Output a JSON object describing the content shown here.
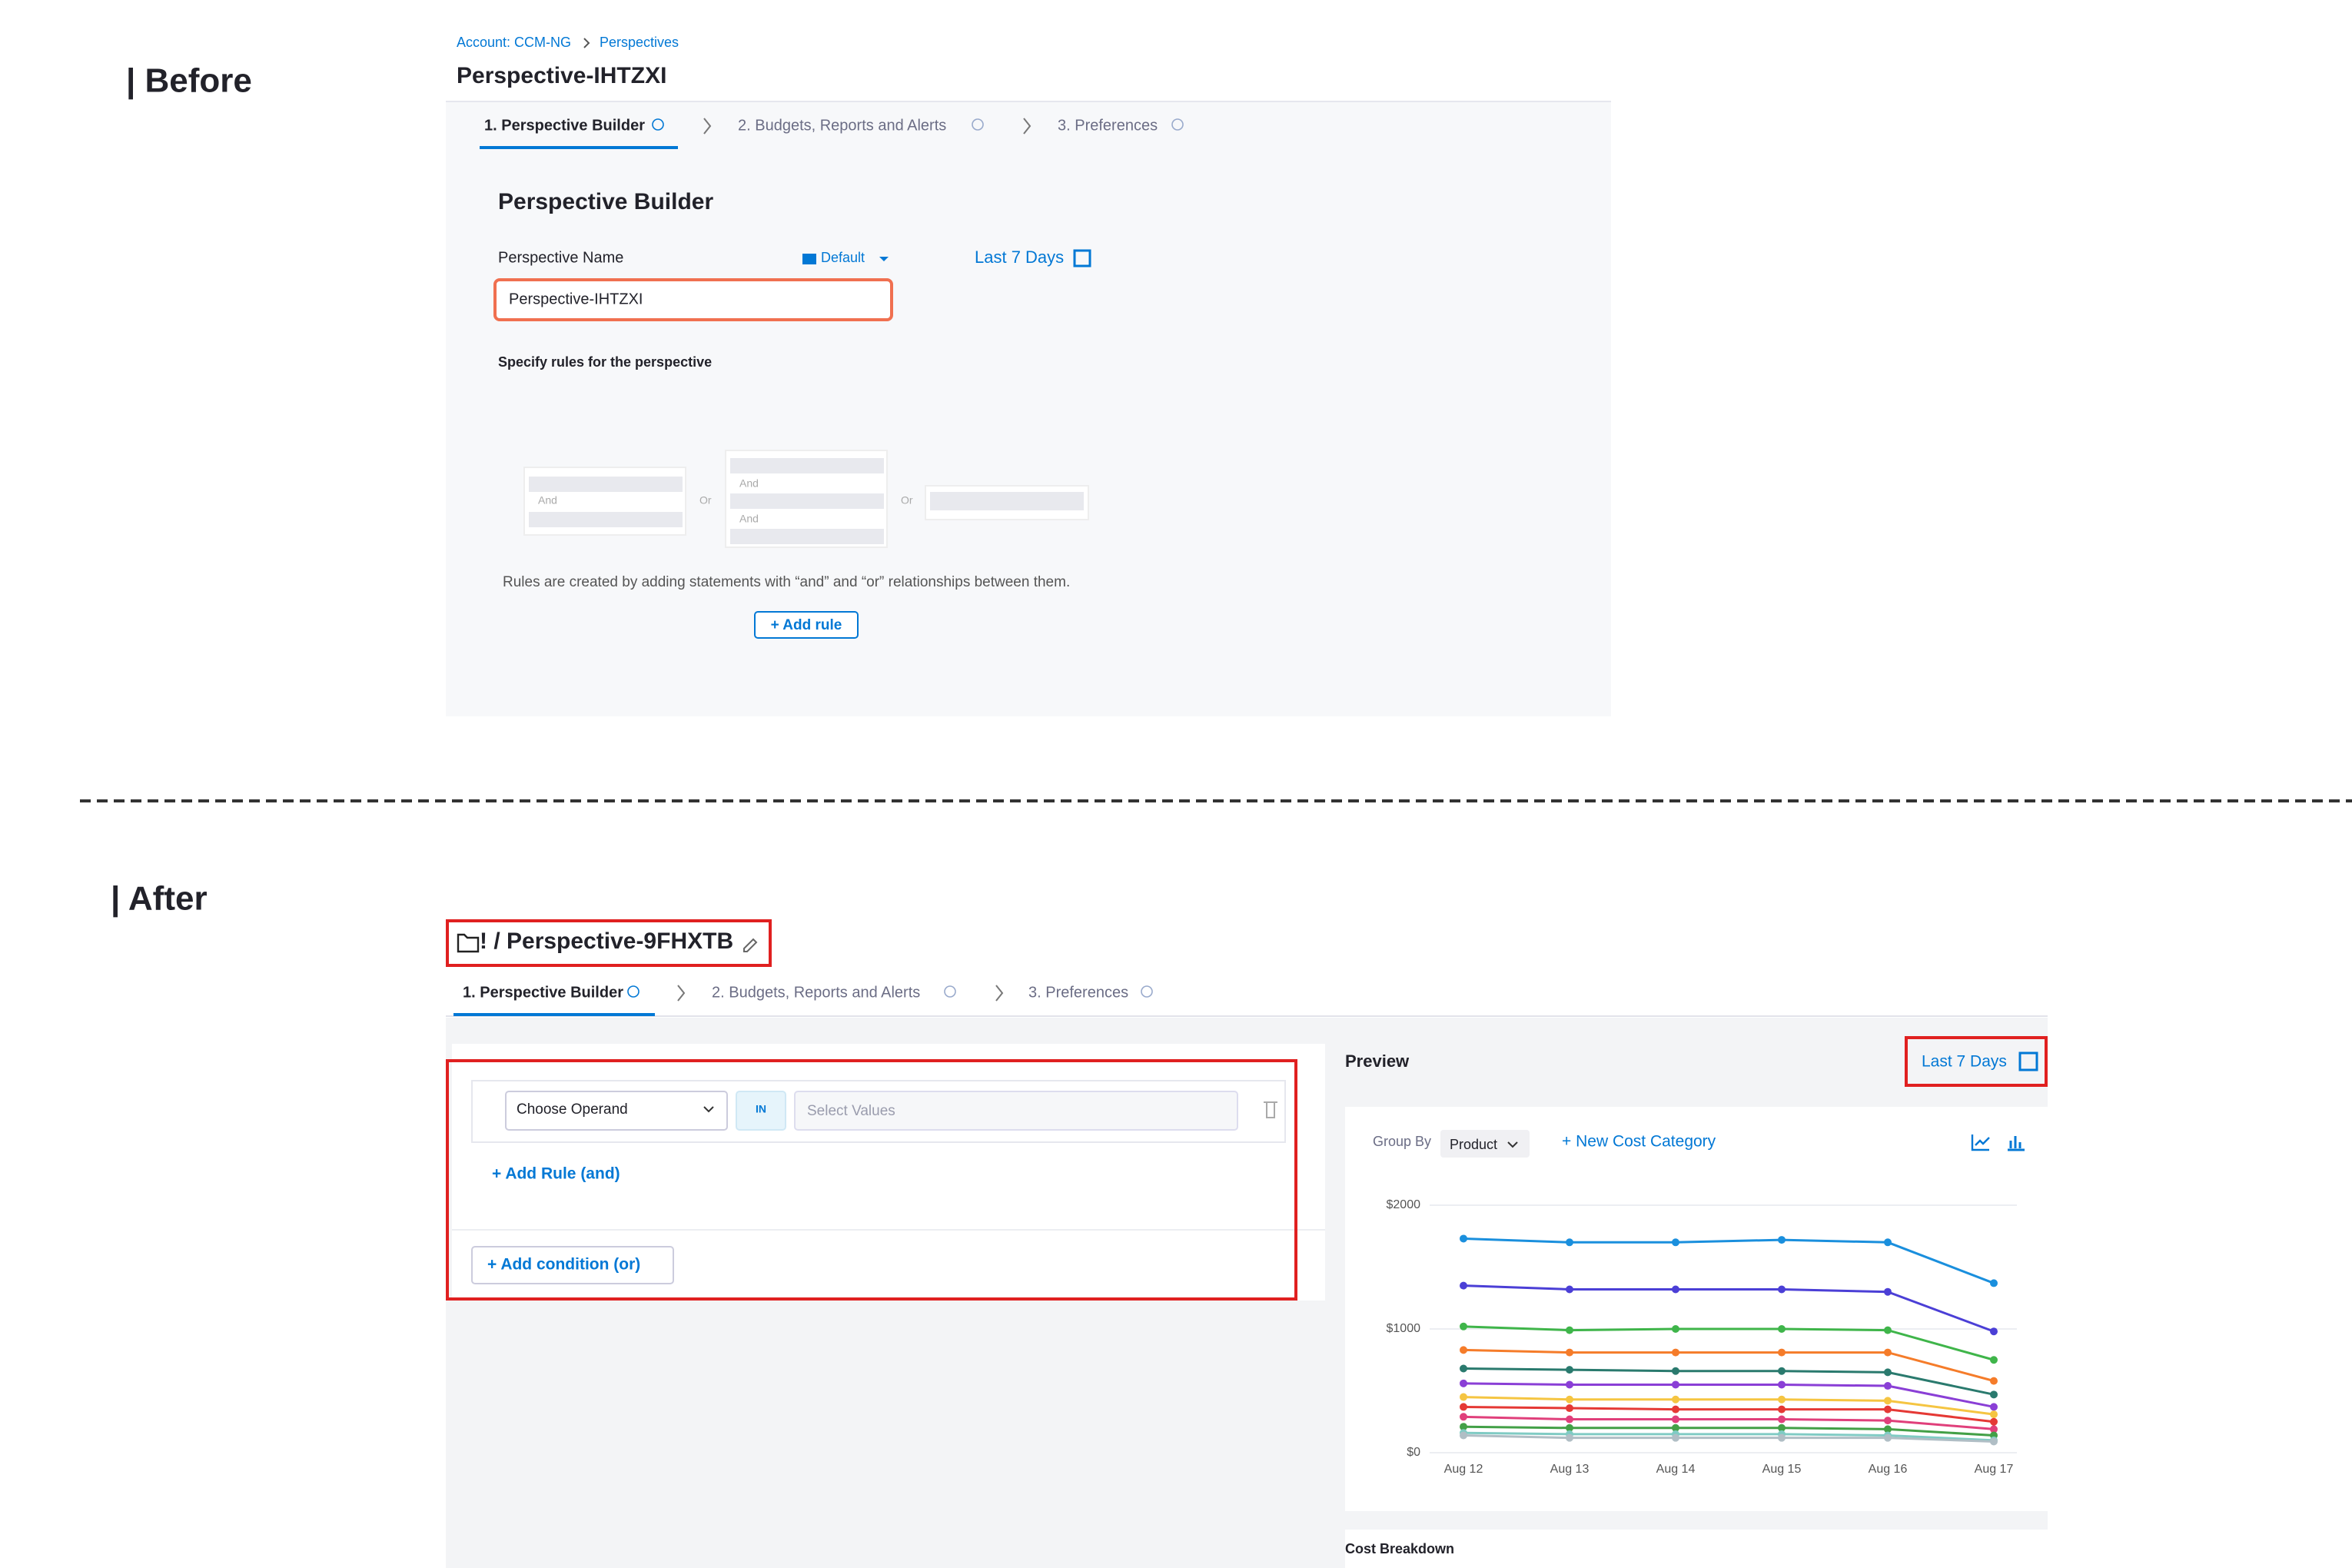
{
  "before": {
    "heading": "| Before",
    "breadcrumb": [
      "Account: CCM-NG",
      "Perspectives"
    ],
    "title": "Perspective-IHTZXI",
    "steps": [
      "1. Perspective Builder",
      "2. Budgets, Reports and Alerts",
      "3. Preferences"
    ],
    "section_title": "Perspective Builder",
    "name_label": "Perspective Name",
    "folder": "Default",
    "time_range": "Last 7 Days",
    "name_value": "Perspective-IHTZXI",
    "rules_label": "Specify rules for the perspective",
    "illustration": {
      "and_labels": [
        "And",
        "And",
        "And"
      ],
      "or_labels": [
        "Or",
        "Or"
      ]
    },
    "rules_help": "Rules are created by adding statements with “and” and “or” relationships between them.",
    "add_rule": "+ Add rule"
  },
  "after": {
    "heading": "| After",
    "title": "! / Perspective-9FHXTB",
    "steps": [
      "1. Perspective Builder",
      "2. Budgets, Reports and Alerts",
      "3. Preferences"
    ],
    "operand_placeholder": "Choose Operand",
    "operator": "IN",
    "values_placeholder": "Select Values",
    "add_rule": "+ Add Rule (and)",
    "add_condition": "+ Add condition (or)",
    "preview": {
      "title": "Preview",
      "time_range": "Last 7 Days",
      "group_by_label": "Group By",
      "group_by": "Product",
      "new_cost_category": "+ New Cost Category",
      "cost_breakdown": "Cost Breakdown",
      "chart": {
        "type": "line",
        "x": [
          "Aug 12",
          "Aug 13",
          "Aug 14",
          "Aug 15",
          "Aug 16",
          "Aug 17"
        ],
        "ylim": [
          0,
          2000
        ],
        "yticks": [
          {
            "value": 0,
            "label": "$0"
          },
          {
            "value": 1000,
            "label": "$1000"
          },
          {
            "value": 2000,
            "label": "$2000"
          }
        ],
        "series": [
          {
            "color": "#1a8fdd",
            "values": [
              1730,
              1700,
              1700,
              1720,
              1700,
              1370
            ]
          },
          {
            "color": "#4b3fd6",
            "values": [
              1350,
              1320,
              1320,
              1320,
              1300,
              980
            ]
          },
          {
            "color": "#3fb54a",
            "values": [
              1020,
              990,
              1000,
              1000,
              990,
              750
            ]
          },
          {
            "color": "#f57c2a",
            "values": [
              830,
              810,
              810,
              810,
              810,
              580
            ]
          },
          {
            "color": "#2a7a6e",
            "values": [
              680,
              670,
              660,
              660,
              650,
              470
            ]
          },
          {
            "color": "#8a3fd6",
            "values": [
              560,
              550,
              550,
              550,
              540,
              370
            ]
          },
          {
            "color": "#f5c542",
            "values": [
              450,
              430,
              430,
              430,
              420,
              310
            ]
          },
          {
            "color": "#e53935",
            "values": [
              370,
              360,
              350,
              350,
              350,
              250
            ]
          },
          {
            "color": "#e0407b",
            "values": [
              290,
              270,
              270,
              270,
              260,
              190
            ]
          },
          {
            "color": "#43a047",
            "values": [
              210,
              200,
              200,
              200,
              190,
              140
            ]
          },
          {
            "color": "#80cbc4",
            "values": [
              160,
              150,
              150,
              150,
              140,
              100
            ]
          },
          {
            "color": "#b0bec5",
            "values": [
              140,
              120,
              120,
              120,
              120,
              90
            ]
          }
        ]
      }
    }
  }
}
